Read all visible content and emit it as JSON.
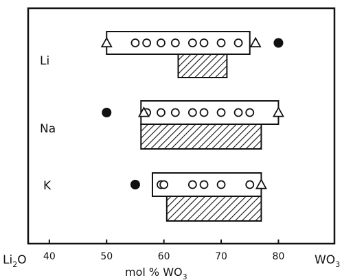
{
  "chart_data": {
    "type": "range",
    "xlabel": "mol % WO3",
    "x_left_label": "Li2O",
    "x_right_label": "WO3",
    "xlim": [
      37.5,
      87.5
    ],
    "x_ticks": [
      40,
      50,
      60,
      70,
      80
    ],
    "grid": false,
    "rows": [
      {
        "label": "Li",
        "range_bar": [
          50,
          75
        ],
        "triangles": [
          50,
          76
        ],
        "open_circles": [
          55,
          57,
          59.5,
          62,
          65,
          67,
          70,
          73
        ],
        "filled_circles": [
          80
        ],
        "hatched_bar": [
          62.5,
          71
        ]
      },
      {
        "label": "Na",
        "range_bar": [
          56,
          80
        ],
        "triangles": [
          56.5,
          80
        ],
        "open_circles": [
          57,
          59.5,
          62,
          65,
          67,
          70,
          73,
          75
        ],
        "filled_circles": [
          50
        ],
        "hatched_bar": [
          56,
          77
        ]
      },
      {
        "label": "K",
        "range_bar": [
          58,
          77
        ],
        "triangles": [
          77
        ],
        "open_circles": [
          59.5,
          60,
          65,
          67,
          70,
          75
        ],
        "filled_circles": [
          55
        ],
        "hatched_bar": [
          60.5,
          77
        ]
      }
    ]
  }
}
